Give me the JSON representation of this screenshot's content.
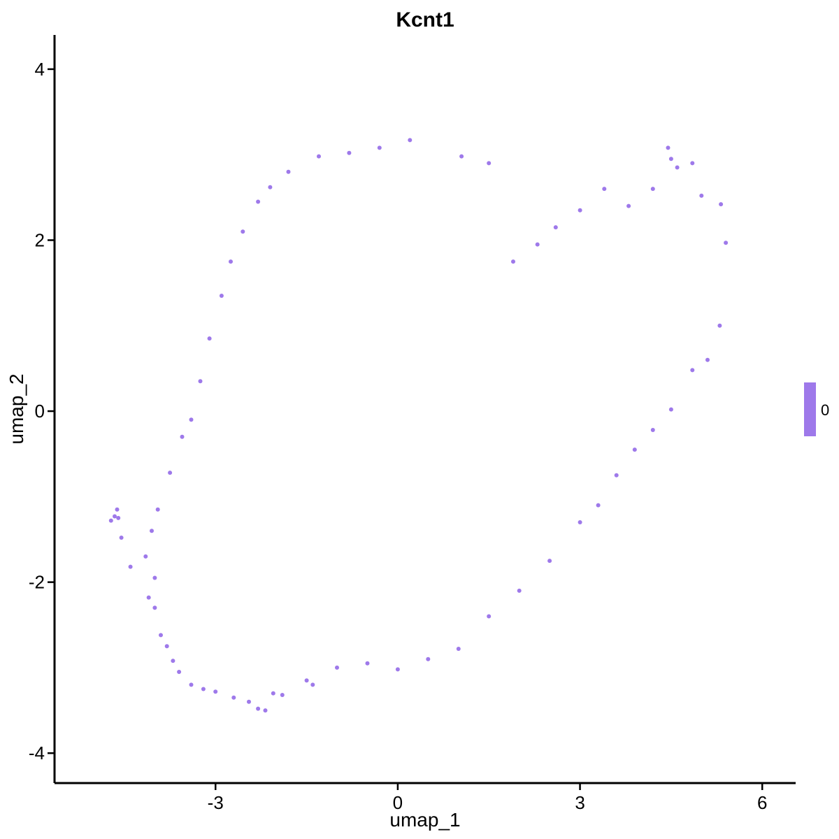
{
  "chart_data": {
    "type": "scatter",
    "title": "Kcnt1",
    "xlabel": "umap_1",
    "ylabel": "umap_2",
    "xlim": [
      -5.65,
      6.55
    ],
    "ylim": [
      -4.35,
      4.4
    ],
    "x_ticks": [
      -3,
      0,
      3,
      6
    ],
    "y_ticks": [
      -4,
      -2,
      0,
      2,
      4
    ],
    "x_tick_labels": [
      "-3",
      "0",
      "3",
      "6"
    ],
    "y_tick_labels": [
      "-4",
      "-2",
      "0",
      "2",
      "4"
    ],
    "grid": false,
    "point_color": "#9e79ea",
    "legend": {
      "placement": "right",
      "label": "0",
      "color": "#9e79ea"
    },
    "series": [
      {
        "values": [
          [
            -4.72,
            -1.28
          ],
          [
            -4.66,
            -1.23
          ],
          [
            -4.62,
            -1.15
          ],
          [
            -4.6,
            -1.25
          ],
          [
            -4.55,
            -1.48
          ],
          [
            -4.4,
            -1.82
          ],
          [
            -4.1,
            -2.18
          ],
          [
            -4.0,
            -2.3
          ],
          [
            -3.9,
            -2.62
          ],
          [
            -3.8,
            -2.75
          ],
          [
            -3.7,
            -2.92
          ],
          [
            -3.6,
            -3.05
          ],
          [
            -3.4,
            -3.2
          ],
          [
            -3.2,
            -3.25
          ],
          [
            -3.0,
            -3.28
          ],
          [
            -2.7,
            -3.35
          ],
          [
            -2.45,
            -3.4
          ],
          [
            -2.3,
            -3.48
          ],
          [
            -2.18,
            -3.5
          ],
          [
            -2.05,
            -3.3
          ],
          [
            -1.9,
            -3.32
          ],
          [
            -1.5,
            -3.15
          ],
          [
            -1.4,
            -3.2
          ],
          [
            -1.0,
            -3.0
          ],
          [
            -0.5,
            -2.95
          ],
          [
            0.0,
            -3.02
          ],
          [
            0.5,
            -2.9
          ],
          [
            1.0,
            -2.78
          ],
          [
            1.5,
            -2.4
          ],
          [
            2.0,
            -2.1
          ],
          [
            2.5,
            -1.75
          ],
          [
            3.0,
            -1.3
          ],
          [
            3.3,
            -1.1
          ],
          [
            3.6,
            -0.75
          ],
          [
            3.9,
            -0.45
          ],
          [
            4.2,
            -0.22
          ],
          [
            4.5,
            0.02
          ],
          [
            4.85,
            0.48
          ],
          [
            5.1,
            0.6
          ],
          [
            5.3,
            1.0
          ],
          [
            5.4,
            1.97
          ],
          [
            5.32,
            2.42
          ],
          [
            5.0,
            2.52
          ],
          [
            4.85,
            2.9
          ],
          [
            4.6,
            2.85
          ],
          [
            4.5,
            2.95
          ],
          [
            4.45,
            3.08
          ],
          [
            4.2,
            2.6
          ],
          [
            3.8,
            2.4
          ],
          [
            3.4,
            2.6
          ],
          [
            3.0,
            2.35
          ],
          [
            2.6,
            2.15
          ],
          [
            2.3,
            1.95
          ],
          [
            1.9,
            1.75
          ],
          [
            1.5,
            2.9
          ],
          [
            1.05,
            2.98
          ],
          [
            0.2,
            3.17
          ],
          [
            -0.3,
            3.08
          ],
          [
            -0.8,
            3.02
          ],
          [
            -1.3,
            2.98
          ],
          [
            -1.8,
            2.8
          ],
          [
            -2.1,
            2.62
          ],
          [
            -2.3,
            2.45
          ],
          [
            -2.55,
            2.1
          ],
          [
            -2.75,
            1.75
          ],
          [
            -2.9,
            1.35
          ],
          [
            -3.1,
            0.85
          ],
          [
            -3.25,
            0.35
          ],
          [
            -3.4,
            -0.1
          ],
          [
            -3.55,
            -0.3
          ],
          [
            -3.75,
            -0.72
          ],
          [
            -3.95,
            -1.15
          ],
          [
            -4.05,
            -1.4
          ],
          [
            -4.15,
            -1.7
          ],
          [
            -4.0,
            -1.95
          ]
        ]
      }
    ]
  }
}
